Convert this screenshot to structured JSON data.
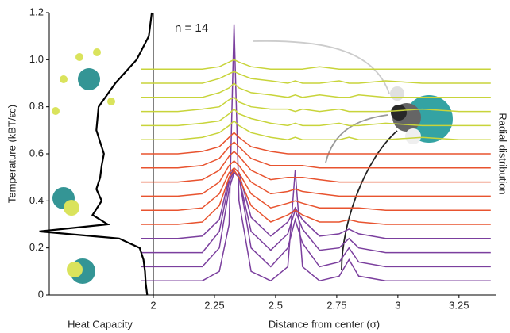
{
  "chart_data": [
    {
      "type": "line",
      "annotation": "n = 14",
      "xlabel": "Distance from center (σ)",
      "ylabel": "Temperature (kBT/εc)",
      "y2label": "Radial distribution",
      "x": [
        1.95,
        2.1,
        2.2,
        2.27,
        2.31,
        2.33,
        2.35,
        2.4,
        2.48,
        2.55,
        2.58,
        2.61,
        2.68,
        2.76,
        2.8,
        2.84,
        2.95,
        3.1,
        3.25,
        3.38
      ],
      "xlim": [
        1.98,
        3.38
      ],
      "xticks": [
        2,
        2.25,
        2.5,
        2.75,
        3,
        3.25
      ],
      "ylim": [
        0,
        1.2
      ],
      "yticks": [
        0,
        0.2,
        0.4,
        0.6,
        0.8,
        {
          "value": 1,
          "label": "1.0"
        },
        1.2
      ],
      "series": [
        {
          "color": "#7b3f9e",
          "values": [
            0.06,
            0.06,
            0.06,
            0.1,
            0.3,
            1.15,
            0.4,
            0.1,
            0.06,
            0.12,
            0.53,
            0.12,
            0.06,
            0.08,
            0.15,
            0.08,
            0.06,
            0.06,
            0.06,
            0.06
          ]
        },
        {
          "color": "#7b3f9e",
          "values": [
            0.12,
            0.12,
            0.12,
            0.2,
            0.45,
            0.52,
            0.5,
            0.2,
            0.12,
            0.2,
            0.32,
            0.22,
            0.12,
            0.14,
            0.2,
            0.14,
            0.12,
            0.12,
            0.12,
            0.12
          ]
        },
        {
          "color": "#7b3f9e",
          "values": [
            0.18,
            0.18,
            0.18,
            0.27,
            0.48,
            0.53,
            0.5,
            0.27,
            0.19,
            0.26,
            0.36,
            0.28,
            0.19,
            0.2,
            0.24,
            0.2,
            0.18,
            0.18,
            0.18,
            0.18
          ]
        },
        {
          "color": "#7b3f9e",
          "values": [
            0.24,
            0.24,
            0.25,
            0.32,
            0.5,
            0.54,
            0.52,
            0.33,
            0.25,
            0.31,
            0.37,
            0.32,
            0.25,
            0.26,
            0.28,
            0.26,
            0.24,
            0.24,
            0.24,
            0.24
          ]
        },
        {
          "color": "#e8532f",
          "values": [
            0.3,
            0.3,
            0.31,
            0.38,
            0.5,
            0.53,
            0.5,
            0.38,
            0.31,
            0.34,
            0.36,
            0.34,
            0.31,
            0.31,
            0.32,
            0.31,
            0.3,
            0.3,
            0.3,
            0.3
          ]
        },
        {
          "color": "#e8532f",
          "values": [
            0.36,
            0.36,
            0.37,
            0.43,
            0.52,
            0.54,
            0.52,
            0.43,
            0.37,
            0.39,
            0.4,
            0.39,
            0.37,
            0.37,
            0.37,
            0.37,
            0.36,
            0.36,
            0.36,
            0.36
          ]
        },
        {
          "color": "#e8532f",
          "values": [
            0.42,
            0.42,
            0.43,
            0.48,
            0.55,
            0.57,
            0.55,
            0.48,
            0.43,
            0.44,
            0.45,
            0.44,
            0.43,
            0.42,
            0.42,
            0.42,
            0.42,
            0.42,
            0.42,
            0.42
          ]
        },
        {
          "color": "#e8532f",
          "values": [
            0.48,
            0.48,
            0.49,
            0.53,
            0.59,
            0.61,
            0.59,
            0.53,
            0.49,
            0.5,
            0.5,
            0.5,
            0.49,
            0.48,
            0.48,
            0.48,
            0.48,
            0.48,
            0.48,
            0.48
          ]
        },
        {
          "color": "#e8532f",
          "values": [
            0.54,
            0.54,
            0.55,
            0.58,
            0.63,
            0.65,
            0.63,
            0.58,
            0.55,
            0.55,
            0.55,
            0.55,
            0.54,
            0.54,
            0.54,
            0.54,
            0.54,
            0.54,
            0.54,
            0.54
          ]
        },
        {
          "color": "#e8532f",
          "values": [
            0.6,
            0.6,
            0.61,
            0.63,
            0.67,
            0.69,
            0.67,
            0.63,
            0.61,
            0.6,
            0.6,
            0.6,
            0.6,
            0.6,
            0.6,
            0.6,
            0.6,
            0.6,
            0.6,
            0.6
          ]
        },
        {
          "color": "#c8d43a",
          "values": [
            0.66,
            0.66,
            0.67,
            0.69,
            0.72,
            0.74,
            0.72,
            0.69,
            0.67,
            0.66,
            0.67,
            0.66,
            0.66,
            0.66,
            0.67,
            0.66,
            0.66,
            0.67,
            0.66,
            0.66
          ]
        },
        {
          "color": "#c8d43a",
          "values": [
            0.72,
            0.72,
            0.73,
            0.74,
            0.77,
            0.79,
            0.77,
            0.75,
            0.73,
            0.72,
            0.73,
            0.72,
            0.72,
            0.73,
            0.72,
            0.72,
            0.73,
            0.72,
            0.72,
            0.72
          ]
        },
        {
          "color": "#c8d43a",
          "values": [
            0.78,
            0.78,
            0.79,
            0.8,
            0.83,
            0.84,
            0.82,
            0.8,
            0.79,
            0.79,
            0.78,
            0.79,
            0.78,
            0.79,
            0.78,
            0.78,
            0.78,
            0.79,
            0.78,
            0.78
          ]
        },
        {
          "color": "#c8d43a",
          "values": [
            0.84,
            0.84,
            0.84,
            0.86,
            0.88,
            0.9,
            0.88,
            0.86,
            0.85,
            0.84,
            0.85,
            0.84,
            0.85,
            0.84,
            0.84,
            0.85,
            0.84,
            0.84,
            0.84,
            0.84
          ]
        },
        {
          "color": "#c8d43a",
          "values": [
            0.9,
            0.9,
            0.9,
            0.92,
            0.94,
            0.95,
            0.94,
            0.92,
            0.91,
            0.9,
            0.91,
            0.9,
            0.9,
            0.91,
            0.9,
            0.9,
            0.91,
            0.9,
            0.9,
            0.9
          ]
        },
        {
          "color": "#c8d43a",
          "values": [
            0.96,
            0.96,
            0.96,
            0.97,
            0.99,
            1.0,
            0.99,
            0.97,
            0.96,
            0.96,
            0.96,
            0.96,
            0.97,
            0.96,
            0.96,
            0.96,
            0.96,
            0.96,
            0.96,
            0.96
          ]
        }
      ]
    },
    {
      "type": "line",
      "orientation": "horizontal",
      "xlabel": "Heat Capacity",
      "y": [
        0,
        0.05,
        0.1,
        0.15,
        0.2,
        0.24,
        0.27,
        0.3,
        0.34,
        0.4,
        0.45,
        0.5,
        0.55,
        0.6,
        0.7,
        0.8,
        0.9,
        1.0,
        1.1,
        1.2
      ],
      "values": [
        8,
        10,
        11,
        13,
        18,
        45,
        150,
        60,
        80,
        68,
        75,
        70,
        68,
        65,
        75,
        72,
        50,
        22,
        6,
        2
      ],
      "xlim": [
        0,
        160
      ],
      "ylim": [
        0,
        1.2
      ],
      "color": "#000000"
    }
  ]
}
